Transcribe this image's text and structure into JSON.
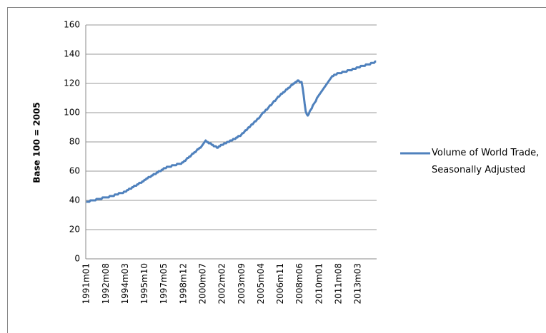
{
  "chart_data": {
    "type": "line",
    "ylabel": "Base 100 = 2005",
    "categories": [
      "1991m01",
      null,
      null,
      null,
      null,
      null,
      null,
      null,
      null,
      null,
      null,
      null,
      null,
      null,
      null,
      null,
      null,
      null,
      null,
      "1992m08",
      null,
      null,
      null,
      null,
      null,
      null,
      null,
      null,
      null,
      null,
      null,
      null,
      null,
      null,
      null,
      null,
      null,
      null,
      "1994m03",
      null,
      null,
      null,
      null,
      null,
      null,
      null,
      null,
      null,
      null,
      null,
      null,
      null,
      null,
      null,
      null,
      null,
      null,
      "1995m10",
      null,
      null,
      null,
      null,
      null,
      null,
      null,
      null,
      null,
      null,
      null,
      null,
      null,
      null,
      null,
      null,
      null,
      null,
      "1997m05",
      null,
      null,
      null,
      null,
      null,
      null,
      null,
      null,
      null,
      null,
      null,
      null,
      null,
      null,
      null,
      null,
      null,
      null,
      "1998m12",
      null,
      null,
      null,
      null,
      null,
      null,
      null,
      null,
      null,
      null,
      null,
      null,
      null,
      null,
      null,
      null,
      null,
      null,
      "2000m07",
      null,
      null,
      null,
      null,
      null,
      null,
      null,
      null,
      null,
      null,
      null,
      null,
      null,
      null,
      null,
      null,
      null,
      null,
      "2002m02",
      null,
      null,
      null,
      null,
      null,
      null,
      null,
      null,
      null,
      null,
      null,
      null,
      null,
      null,
      null,
      null,
      null,
      null,
      "2003m09",
      null,
      null,
      null,
      null,
      null,
      null,
      null,
      null,
      null,
      null,
      null,
      null,
      null,
      null,
      null,
      null,
      null,
      null,
      "2005m04",
      null,
      null,
      null,
      null,
      null,
      null,
      null,
      null,
      null,
      null,
      null,
      null,
      null,
      null,
      null,
      null,
      null,
      null,
      "2006m11",
      null,
      null,
      null,
      null,
      null,
      null,
      null,
      null,
      null,
      null,
      null,
      null,
      null,
      null,
      null,
      null,
      null,
      null,
      "2008m06",
      null,
      null,
      null,
      null,
      null,
      null,
      null,
      null,
      null,
      null,
      null,
      null,
      null,
      null,
      null,
      null,
      null,
      null,
      "2010m01",
      null,
      null,
      null,
      null,
      null,
      null,
      null,
      null,
      null,
      null,
      null,
      null,
      null,
      null,
      null,
      null,
      null,
      null,
      "2011m08",
      null,
      null,
      null,
      null,
      null,
      null,
      null,
      null,
      null,
      null,
      null,
      null,
      null,
      null,
      null,
      null,
      null,
      null,
      "2013m03",
      null,
      null,
      null,
      null,
      null,
      null,
      null,
      null,
      null,
      null,
      null,
      null,
      null,
      null,
      null,
      null,
      null,
      null
    ],
    "series": [
      {
        "name": "Volume of World Trade, Seasonally Adjusted",
        "color": "#4f81bd",
        "values": [
          39,
          39,
          39,
          39,
          40,
          40,
          40,
          40,
          40,
          40,
          41,
          41,
          41,
          41,
          41,
          41,
          42,
          42,
          42,
          42,
          42,
          42,
          42,
          43,
          43,
          43,
          43,
          43,
          44,
          44,
          44,
          44,
          45,
          45,
          45,
          45,
          45,
          46,
          46,
          46,
          47,
          47,
          48,
          48,
          48,
          49,
          49,
          50,
          50,
          50,
          51,
          51,
          52,
          52,
          52,
          53,
          53,
          54,
          54,
          55,
          55,
          56,
          56,
          56,
          57,
          57,
          58,
          58,
          58,
          59,
          59,
          60,
          60,
          60,
          61,
          61,
          62,
          62,
          62,
          63,
          63,
          63,
          63,
          63,
          64,
          64,
          64,
          64,
          64,
          65,
          65,
          65,
          65,
          65,
          66,
          66,
          67,
          67,
          68,
          69,
          69,
          70,
          70,
          71,
          72,
          72,
          73,
          73,
          74,
          75,
          75,
          76,
          76,
          77,
          78,
          79,
          80,
          81,
          80,
          80,
          79,
          79,
          79,
          78,
          78,
          77,
          77,
          77,
          76,
          76,
          77,
          77,
          78,
          78,
          78,
          79,
          79,
          79,
          80,
          80,
          80,
          81,
          81,
          81,
          82,
          82,
          82,
          83,
          83,
          84,
          84,
          84,
          85,
          86,
          86,
          87,
          88,
          88,
          89,
          90,
          90,
          91,
          92,
          92,
          93,
          94,
          94,
          95,
          96,
          96,
          97,
          98,
          99,
          100,
          100,
          101,
          102,
          102,
          103,
          104,
          105,
          105,
          106,
          107,
          108,
          108,
          109,
          110,
          111,
          111,
          112,
          113,
          113,
          114,
          114,
          115,
          116,
          116,
          117,
          117,
          118,
          119,
          119,
          120,
          120,
          121,
          121,
          122,
          122,
          121,
          121,
          121,
          117,
          112,
          106,
          101,
          99,
          98,
          99,
          101,
          102,
          103,
          105,
          106,
          107,
          108,
          110,
          111,
          112,
          113,
          114,
          115,
          116,
          117,
          118,
          119,
          120,
          121,
          122,
          123,
          124,
          125,
          125,
          126,
          126,
          126,
          127,
          127,
          127,
          127,
          127,
          128,
          128,
          128,
          128,
          128,
          129,
          129,
          129,
          129,
          129,
          130,
          130,
          130,
          130,
          131,
          131,
          131,
          131,
          132,
          132,
          132,
          132,
          132,
          133,
          133,
          133,
          133,
          133,
          134,
          134,
          134,
          134,
          135,
          135
        ]
      }
    ],
    "ylim": [
      0,
      160
    ],
    "yticks": [
      0,
      20,
      40,
      60,
      80,
      100,
      120,
      140,
      160
    ],
    "grid": true,
    "legend": "right"
  }
}
